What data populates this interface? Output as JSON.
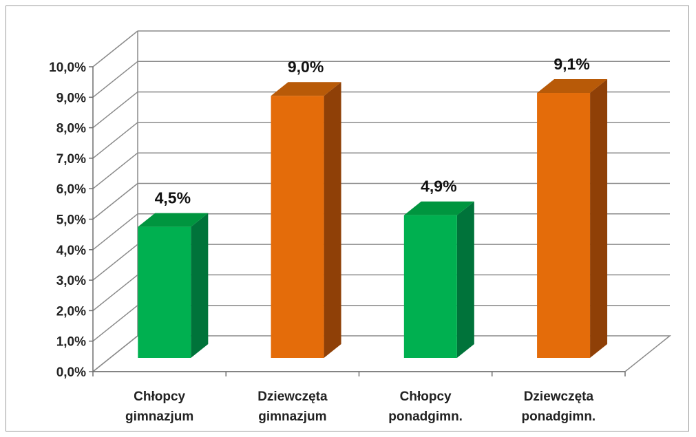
{
  "chart_data": {
    "type": "bar",
    "categories": [
      [
        "Chłopcy",
        "gimnazjum"
      ],
      [
        "Dziewczęta",
        "gimnazjum"
      ],
      [
        "Chłopcy",
        "ponadgimn."
      ],
      [
        "Dziewczęta",
        "ponadgimn."
      ]
    ],
    "values": [
      4.5,
      9.0,
      4.9,
      9.1
    ],
    "data_labels": [
      "4,5%",
      "9,0%",
      "4,9%",
      "9,1%"
    ],
    "y_ticks": [
      "0,0%",
      "1,0%",
      "2,0%",
      "3,0%",
      "4,0%",
      "5,0%",
      "6,0%",
      "7,0%",
      "8,0%",
      "9,0%",
      "10,0%"
    ],
    "ylim": [
      0,
      10
    ],
    "grid": true,
    "legend": "none",
    "title": "",
    "xlabel": "",
    "ylabel": "",
    "colors": {
      "green": {
        "front": "#00b050",
        "side": "#00733a",
        "top": "#00953f"
      },
      "orange": {
        "front": "#e46c0a",
        "side": "#8f4007",
        "top": "#b85a08"
      },
      "bar_colors": [
        "green",
        "orange",
        "green",
        "orange"
      ]
    }
  }
}
